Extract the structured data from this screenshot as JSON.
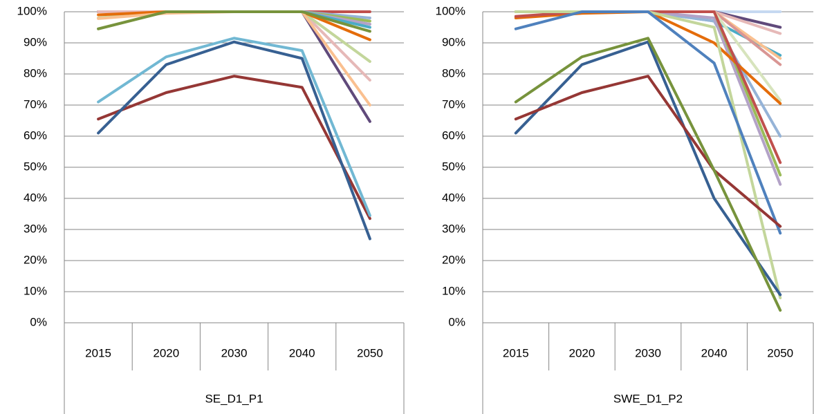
{
  "chart_data": [
    {
      "type": "line",
      "categories": [
        "2015",
        "2020",
        "2030",
        "2040",
        "2050"
      ],
      "x_group": "SE_D1_P1",
      "ylim": [
        0,
        100
      ],
      "grid": true,
      "yticks": [
        {
          "value": 0,
          "label": "0%"
        },
        {
          "value": 10,
          "label": "10%"
        },
        {
          "value": 20,
          "label": "20%"
        },
        {
          "value": 30,
          "label": "30%"
        },
        {
          "value": 40,
          "label": "40%"
        },
        {
          "value": 50,
          "label": "50%"
        },
        {
          "value": 60,
          "label": "60%"
        },
        {
          "value": 70,
          "label": "70%"
        },
        {
          "value": 80,
          "label": "80%"
        },
        {
          "value": 90,
          "label": "90%"
        },
        {
          "value": 100,
          "label": "100%"
        }
      ],
      "series": [
        {
          "color": "#c0504d",
          "values": [
            100,
            100,
            100,
            100,
            100
          ]
        },
        {
          "color": "#95b3d7",
          "values": [
            100,
            100,
            100,
            100,
            98
          ]
        },
        {
          "color": "#9bbb59",
          "values": [
            100,
            100,
            100,
            100,
            97
          ]
        },
        {
          "color": "#b3a2c7",
          "values": [
            100,
            100,
            100,
            100,
            96
          ]
        },
        {
          "color": "#4bacc6",
          "values": [
            100,
            100,
            100,
            100,
            95
          ]
        },
        {
          "color": "#604a7b",
          "values": [
            100,
            100,
            100,
            100,
            64.7
          ]
        },
        {
          "color": "#e6b9b8",
          "values": [
            100,
            100,
            100,
            100,
            78
          ]
        },
        {
          "color": "#c3d69b",
          "values": [
            98,
            100,
            100,
            100,
            84
          ]
        },
        {
          "color": "#e46c0a",
          "values": [
            99,
            100,
            100,
            100,
            91
          ]
        },
        {
          "color": "#fac090",
          "values": [
            97.8,
            99.5,
            100,
            100,
            70
          ]
        },
        {
          "color": "#77933c",
          "values": [
            94.5,
            100,
            100,
            100,
            93.7
          ]
        },
        {
          "color": "#953735",
          "values": [
            65.5,
            74,
            79.3,
            75.7,
            33.5
          ]
        },
        {
          "color": "#376092",
          "values": [
            61,
            83,
            90.3,
            85,
            27
          ]
        },
        {
          "color": "#71b8d3",
          "values": [
            71,
            85.5,
            91.5,
            87.5,
            34.5
          ]
        }
      ]
    },
    {
      "type": "line",
      "categories": [
        "2015",
        "2020",
        "2030",
        "2040",
        "2050"
      ],
      "x_group": "SWE_D1_P2",
      "ylim": [
        0,
        100
      ],
      "grid": true,
      "yticks": [
        {
          "value": 0,
          "label": "0%"
        },
        {
          "value": 10,
          "label": "10%"
        },
        {
          "value": 20,
          "label": "20%"
        },
        {
          "value": 30,
          "label": "30%"
        },
        {
          "value": 40,
          "label": "40%"
        },
        {
          "value": 50,
          "label": "50%"
        },
        {
          "value": 60,
          "label": "60%"
        },
        {
          "value": 70,
          "label": "70%"
        },
        {
          "value": 80,
          "label": "80%"
        },
        {
          "value": 90,
          "label": "90%"
        },
        {
          "value": 100,
          "label": "100%"
        }
      ],
      "series": [
        {
          "color": "#c6d9f1",
          "values": [
            100,
            100,
            100,
            100,
            100
          ]
        },
        {
          "color": "#604a7b",
          "values": [
            100,
            100,
            100,
            100,
            95
          ]
        },
        {
          "color": "#e6b9b8",
          "values": [
            100,
            100,
            100,
            100,
            93
          ]
        },
        {
          "color": "#4bacc6",
          "values": [
            100,
            100,
            100,
            97,
            86
          ]
        },
        {
          "color": "#fac090",
          "values": [
            100,
            100,
            100,
            100,
            85
          ]
        },
        {
          "color": "#d99694",
          "values": [
            100,
            100,
            100,
            100,
            83
          ]
        },
        {
          "color": "#95b3d7",
          "values": [
            100,
            100,
            100,
            97,
            60
          ]
        },
        {
          "color": "#b3a2c7",
          "values": [
            100,
            100,
            100,
            98,
            44.5
          ]
        },
        {
          "color": "#9bbb59",
          "values": [
            100,
            100,
            100,
            100,
            47.5
          ]
        },
        {
          "color": "#d7e4bd",
          "values": [
            100,
            100,
            100,
            100,
            71.5
          ]
        },
        {
          "color": "#e46c0a",
          "values": [
            98,
            99.5,
            100,
            90,
            70.5
          ]
        },
        {
          "color": "#c0504d",
          "values": [
            98.5,
            100,
            100,
            100,
            51.5
          ]
        },
        {
          "color": "#c3d69b",
          "values": [
            100,
            100,
            100,
            95,
            8
          ]
        },
        {
          "color": "#4f81bd",
          "values": [
            94.5,
            100,
            100,
            83.5,
            28.8
          ]
        },
        {
          "color": "#376092",
          "values": [
            61,
            83,
            90.3,
            40,
            9
          ]
        },
        {
          "color": "#953735",
          "values": [
            65.5,
            74,
            79.3,
            49,
            31
          ]
        },
        {
          "color": "#77933c",
          "values": [
            71,
            85.5,
            91.5,
            49,
            4
          ]
        }
      ]
    }
  ]
}
